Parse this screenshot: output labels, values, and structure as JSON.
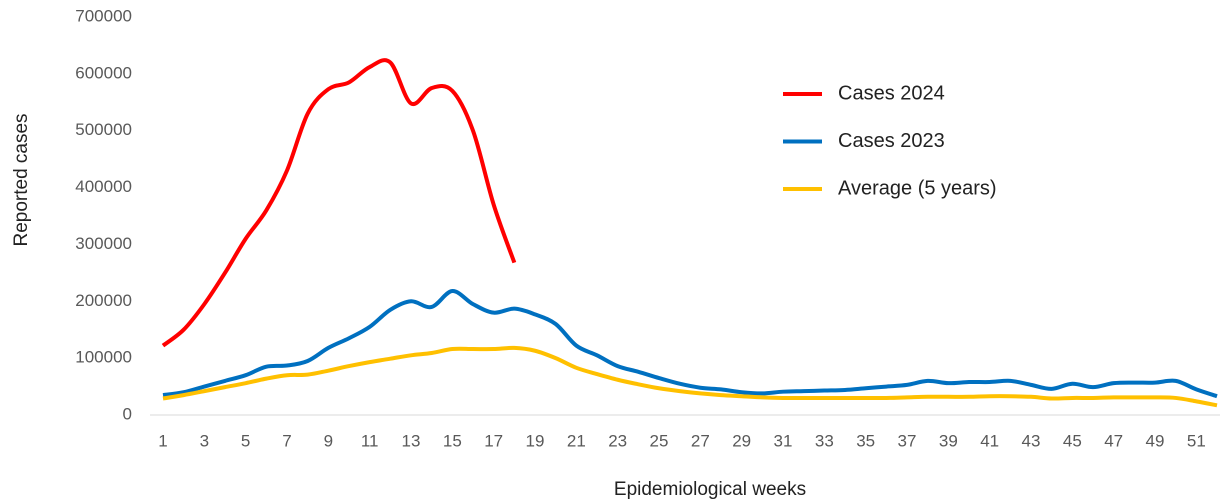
{
  "chart_data": {
    "type": "line",
    "x_label": "Epidemiological weeks",
    "y_label": "Reported cases",
    "x": [
      1,
      2,
      3,
      4,
      5,
      6,
      7,
      8,
      9,
      10,
      11,
      12,
      13,
      14,
      15,
      16,
      17,
      18,
      19,
      20,
      21,
      22,
      23,
      24,
      25,
      26,
      27,
      28,
      29,
      30,
      31,
      32,
      33,
      34,
      35,
      36,
      37,
      38,
      39,
      40,
      41,
      42,
      43,
      44,
      45,
      46,
      47,
      48,
      49,
      50,
      51,
      52
    ],
    "xlim": [
      1,
      52
    ],
    "xticks": [
      1,
      3,
      5,
      7,
      9,
      11,
      13,
      15,
      17,
      19,
      21,
      23,
      25,
      27,
      29,
      31,
      33,
      35,
      37,
      39,
      41,
      43,
      45,
      47,
      49,
      51
    ],
    "ylim": [
      0,
      700000
    ],
    "yticks": [
      0,
      100000,
      200000,
      300000,
      400000,
      500000,
      600000,
      700000
    ],
    "grid": false,
    "legend": "upper right",
    "series": [
      {
        "name": "Cases 2024",
        "color": "#ff0000",
        "values": [
          122000,
          150000,
          195000,
          250000,
          310000,
          360000,
          430000,
          530000,
          573000,
          585000,
          612000,
          620000,
          548000,
          575000,
          570000,
          500000,
          370000,
          268000,
          null,
          null,
          null,
          null,
          null,
          null,
          null,
          null,
          null,
          null,
          null,
          null,
          null,
          null,
          null,
          null,
          null,
          null,
          null,
          null,
          null,
          null,
          null,
          null,
          null,
          null,
          null,
          null,
          null,
          null,
          null,
          null,
          null,
          null
        ]
      },
      {
        "name": "Cases 2023",
        "color": "#0070c0",
        "values": [
          35000,
          40000,
          50000,
          60000,
          70000,
          85000,
          87000,
          95000,
          118000,
          135000,
          155000,
          185000,
          200000,
          190000,
          218000,
          195000,
          180000,
          187000,
          177000,
          160000,
          122000,
          105000,
          86000,
          76000,
          65000,
          55000,
          48000,
          45000,
          40000,
          38000,
          41000,
          42000,
          43000,
          44000,
          47000,
          50000,
          53000,
          60000,
          56000,
          58000,
          58000,
          60000,
          53000,
          46000,
          55000,
          49000,
          56000,
          57000,
          57000,
          60000,
          45000,
          33000
        ]
      },
      {
        "name": "Average (5 years)",
        "color": "#ffc000",
        "values": [
          29000,
          35000,
          42000,
          49000,
          56000,
          64000,
          70000,
          71000,
          78000,
          86000,
          93000,
          99000,
          105000,
          109000,
          116000,
          116000,
          116000,
          118000,
          113000,
          100000,
          83000,
          72000,
          62000,
          54000,
          47000,
          42000,
          38000,
          35000,
          33000,
          31000,
          30000,
          30000,
          30000,
          30000,
          30000,
          30000,
          31000,
          32000,
          32000,
          32000,
          33000,
          33000,
          32000,
          29000,
          30000,
          30000,
          31000,
          31000,
          31000,
          30000,
          24000,
          17000
        ]
      }
    ]
  }
}
